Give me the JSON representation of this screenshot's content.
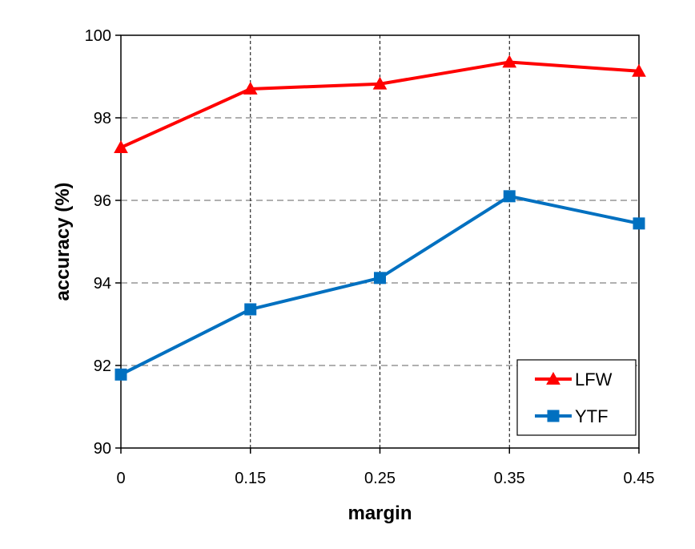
{
  "chart_data": {
    "type": "line",
    "title": "",
    "xlabel": "margin",
    "ylabel": "accuracy (%)",
    "x_ticks": [
      "0",
      "0.15",
      "0.25",
      "0.35",
      "0.45"
    ],
    "y_ticks": [
      "90",
      "92",
      "94",
      "96",
      "98",
      "100"
    ],
    "ylim": [
      90,
      100
    ],
    "grid": "dashed, both axes",
    "legend_position": "bottom-right",
    "series": [
      {
        "name": "LFW",
        "color": "#ff0000",
        "marker": "triangle",
        "values": [
          97.28,
          98.7,
          98.82,
          99.35,
          99.13
        ]
      },
      {
        "name": "YTF",
        "color": "#0070c0",
        "marker": "square",
        "values": [
          91.78,
          93.36,
          94.12,
          96.1,
          95.44
        ]
      }
    ]
  }
}
